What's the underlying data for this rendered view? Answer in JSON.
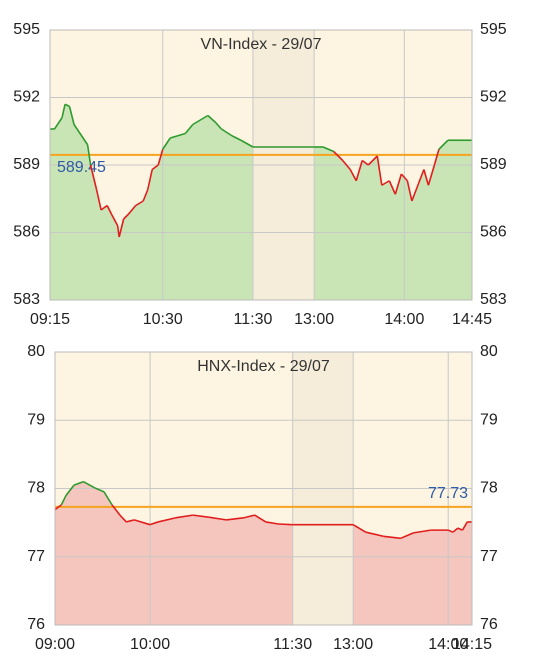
{
  "chart_data": [
    {
      "type": "line",
      "title": "VN-Index - 29/07",
      "x": [
        "09:15",
        "09:18",
        "09:23",
        "09:25",
        "09:28",
        "09:31",
        "09:36",
        "09:40",
        "09:42",
        "09:46",
        "09:49",
        "09:53",
        "09:56",
        "10:00",
        "10:01",
        "10:04",
        "10:07",
        "10:12",
        "10:17",
        "10:20",
        "10:23",
        "10:27",
        "10:30",
        "10:35",
        "10:40",
        "10:45",
        "10:50",
        "10:55",
        "11:00",
        "11:05",
        "11:09",
        "11:16",
        "11:22",
        "11:30",
        "13:00",
        "13:06",
        "13:13",
        "13:19",
        "13:24",
        "13:28",
        "13:32",
        "13:36",
        "13:42",
        "13:45",
        "13:50",
        "13:54",
        "13:58",
        "14:02",
        "14:05",
        "14:09",
        "14:13",
        "14:16",
        "14:20",
        "14:23",
        "14:29",
        "14:35",
        "14:45"
      ],
      "values": [
        590.6,
        590.6,
        591.1,
        591.7,
        591.6,
        590.8,
        590.3,
        589.9,
        589.0,
        587.9,
        587.0,
        587.2,
        586.8,
        586.3,
        585.8,
        586.6,
        586.8,
        587.2,
        587.4,
        587.9,
        588.8,
        589.0,
        589.7,
        590.2,
        590.3,
        590.4,
        590.8,
        591.0,
        591.2,
        590.9,
        590.6,
        590.3,
        590.1,
        589.8,
        589.8,
        589.8,
        589.6,
        589.2,
        588.8,
        588.3,
        589.2,
        589.0,
        589.4,
        588.1,
        588.3,
        587.7,
        588.6,
        588.3,
        587.4,
        588.1,
        588.8,
        588.1,
        589.0,
        589.7,
        590.1,
        590.1,
        590.1
      ],
      "reference": 589.45,
      "reference_label_side": "left",
      "xlim": [
        "09:15",
        "14:45"
      ],
      "xticks": [
        "09:15",
        "10:30",
        "11:30",
        "13:00",
        "14:00",
        "14:45"
      ],
      "break": [
        "11:30",
        "13:00"
      ],
      "ylim": [
        583,
        595
      ],
      "yticks": [
        583,
        586,
        589,
        592,
        595
      ],
      "up_color": "#2f9a2f",
      "down_color": "#e01e1e",
      "fill_color": "#c9e5b6",
      "reference_color": "#f5a41f",
      "grid": true
    },
    {
      "type": "line",
      "title": "HNX-Index - 29/07",
      "x": [
        "09:00",
        "09:04",
        "09:07",
        "09:12",
        "09:18",
        "09:25",
        "09:31",
        "09:36",
        "09:41",
        "09:45",
        "09:50",
        "10:00",
        "10:05",
        "10:16",
        "10:27",
        "10:37",
        "10:48",
        "10:59",
        "11:06",
        "11:13",
        "11:21",
        "11:30",
        "13:00",
        "13:08",
        "13:19",
        "13:30",
        "13:38",
        "13:49",
        "14:00",
        "14:03",
        "14:06",
        "14:09",
        "14:12",
        "14:15"
      ],
      "values": [
        77.69,
        77.76,
        77.9,
        78.05,
        78.1,
        78.01,
        77.95,
        77.76,
        77.61,
        77.51,
        77.54,
        77.47,
        77.51,
        77.57,
        77.61,
        77.58,
        77.54,
        77.57,
        77.61,
        77.51,
        77.48,
        77.47,
        77.47,
        77.36,
        77.3,
        77.27,
        77.35,
        77.39,
        77.39,
        77.36,
        77.42,
        77.39,
        77.51,
        77.51
      ],
      "reference": 77.73,
      "reference_label_side": "right",
      "xlim": [
        "09:00",
        "14:15"
      ],
      "xticks": [
        "09:00",
        "10:00",
        "11:30",
        "13:00",
        "14:00",
        "14:15"
      ],
      "break": [
        "11:30",
        "13:00"
      ],
      "ylim": [
        76,
        80
      ],
      "yticks": [
        76,
        77,
        78,
        79,
        80
      ],
      "up_color": "#2f9a2f",
      "down_color": "#e01e1e",
      "fill_color": "#f4c6bd",
      "reference_color": "#f5a41f",
      "grid": true
    }
  ]
}
